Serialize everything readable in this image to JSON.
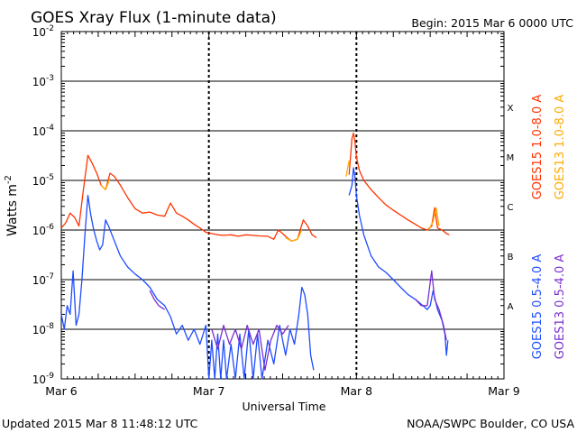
{
  "header": {
    "title": "GOES Xray Flux (1-minute data)",
    "begin": "Begin:  2015 Mar 6 0000 UTC"
  },
  "footer": {
    "updated": "Updated 2015 Mar  8 11:48:12 UTC",
    "credit": "NOAA/SWPC Boulder, CO USA"
  },
  "colors": {
    "goes15_long": "#ff3300",
    "goes13_long": "#ffaa00",
    "goes15_short": "#1f4cff",
    "goes13_short": "#7a2fd0",
    "gridline": "#000000"
  },
  "chart_data": {
    "type": "line",
    "title": "GOES Xray Flux (1-minute data)",
    "xlabel": "Universal Time",
    "ylabel": "Watts m-2",
    "y_scale": "log",
    "xlim": [
      0,
      3
    ],
    "ylim": [
      1e-09,
      0.01
    ],
    "x_unit": "days since 2015 Mar 6 0000 UTC",
    "x_ticks": [
      {
        "value": 0,
        "label": "Mar 6"
      },
      {
        "value": 1,
        "label": "Mar 7"
      },
      {
        "value": 2,
        "label": "Mar 8"
      },
      {
        "value": 3,
        "label": "Mar 9"
      }
    ],
    "y_ticks": [
      {
        "value": 1e-09,
        "base": "10",
        "exp": "-9"
      },
      {
        "value": 1e-08,
        "base": "10",
        "exp": "-8"
      },
      {
        "value": 1e-07,
        "base": "10",
        "exp": "-7"
      },
      {
        "value": 1e-06,
        "base": "10",
        "exp": "-6"
      },
      {
        "value": 1e-05,
        "base": "10",
        "exp": "-5"
      },
      {
        "value": 0.0001,
        "base": "10",
        "exp": "-4"
      },
      {
        "value": 0.001,
        "base": "10",
        "exp": "-3"
      },
      {
        "value": 0.01,
        "base": "10",
        "exp": "-2"
      }
    ],
    "flare_classes": [
      {
        "label": "A",
        "value": 3e-08
      },
      {
        "label": "B",
        "value": 3e-07
      },
      {
        "label": "C",
        "value": 3e-06
      },
      {
        "label": "M",
        "value": 3e-05
      },
      {
        "label": "X",
        "value": 0.0003
      }
    ],
    "legend_placement": "right",
    "grid": "horizontal at decades, dashed verticals at day boundaries",
    "series": [
      {
        "name": "GOES15 1.0-8.0 A",
        "color": "#ff3300",
        "segments": [
          [
            [
              0.0,
              1.1e-06
            ],
            [
              0.03,
              1.4e-06
            ],
            [
              0.06,
              2.2e-06
            ],
            [
              0.09,
              1.8e-06
            ],
            [
              0.12,
              1.2e-06
            ],
            [
              0.15,
              6.5e-06
            ],
            [
              0.18,
              3.2e-05
            ],
            [
              0.21,
              2.2e-05
            ],
            [
              0.24,
              1.4e-05
            ],
            [
              0.27,
              8e-06
            ],
            [
              0.3,
              6.5e-06
            ],
            [
              0.33,
              1.4e-05
            ],
            [
              0.36,
              1.2e-05
            ],
            [
              0.4,
              8e-06
            ],
            [
              0.45,
              4.5e-06
            ],
            [
              0.5,
              2.7e-06
            ],
            [
              0.55,
              2.2e-06
            ],
            [
              0.6,
              2.3e-06
            ],
            [
              0.65,
              2e-06
            ],
            [
              0.7,
              1.9e-06
            ],
            [
              0.74,
              3.5e-06
            ],
            [
              0.78,
              2.2e-06
            ],
            [
              0.82,
              1.9e-06
            ],
            [
              0.86,
              1.6e-06
            ],
            [
              0.9,
              1.3e-06
            ],
            [
              0.94,
              1.1e-06
            ],
            [
              0.98,
              9e-07
            ],
            [
              1.02,
              8.5e-07
            ],
            [
              1.06,
              8e-07
            ],
            [
              1.1,
              7.8e-07
            ],
            [
              1.15,
              8e-07
            ],
            [
              1.2,
              7.5e-07
            ],
            [
              1.25,
              8e-07
            ],
            [
              1.3,
              7.8e-07
            ],
            [
              1.35,
              7.6e-07
            ],
            [
              1.4,
              7.5e-07
            ],
            [
              1.44,
              6.5e-07
            ],
            [
              1.47,
              1e-06
            ],
            [
              1.5,
              8.5e-07
            ],
            [
              1.53,
              7e-07
            ],
            [
              1.56,
              6e-07
            ],
            [
              1.6,
              6.5e-07
            ],
            [
              1.64,
              1.6e-06
            ],
            [
              1.67,
              1.2e-06
            ],
            [
              1.7,
              8e-07
            ],
            [
              1.73,
              7e-07
            ]
          ],
          [
            [
              1.95,
              1.3e-05
            ],
            [
              1.96,
              3e-05
            ],
            [
              1.97,
              7e-05
            ],
            [
              1.98,
              9e-05
            ],
            [
              1.99,
              6e-05
            ],
            [
              2.0,
              3e-05
            ],
            [
              2.02,
              1.6e-05
            ],
            [
              2.05,
              1e-05
            ],
            [
              2.1,
              6.5e-06
            ],
            [
              2.15,
              4.5e-06
            ],
            [
              2.2,
              3.2e-06
            ],
            [
              2.25,
              2.5e-06
            ],
            [
              2.3,
              2e-06
            ],
            [
              2.35,
              1.6e-06
            ],
            [
              2.4,
              1.3e-06
            ],
            [
              2.44,
              1.1e-06
            ],
            [
              2.48,
              1e-06
            ],
            [
              2.51,
              1.2e-06
            ],
            [
              2.53,
              2.8e-06
            ],
            [
              2.55,
              1.1e-06
            ],
            [
              2.58,
              1e-06
            ],
            [
              2.61,
              8.5e-07
            ],
            [
              2.63,
              8e-07
            ]
          ]
        ]
      },
      {
        "name": "GOES13 1.0-8.0 A",
        "color": "#ffaa00",
        "segments": [
          [
            [
              0.27,
              8e-06
            ],
            [
              0.3,
              6.5e-06
            ],
            [
              0.33,
              1.1e-05
            ]
          ],
          [
            [
              1.52,
              7e-07
            ],
            [
              1.56,
              6e-07
            ],
            [
              1.6,
              6.5e-07
            ],
            [
              1.63,
              1e-06
            ]
          ],
          [
            [
              1.93,
              1.2e-05
            ],
            [
              1.95,
              2.5e-05
            ]
          ],
          [
            [
              2.49,
              1e-06
            ],
            [
              2.52,
              1.5e-06
            ],
            [
              2.54,
              2.8e-06
            ],
            [
              2.56,
              1.2e-06
            ]
          ]
        ]
      },
      {
        "name": "GOES15 0.5-4.0 A",
        "color": "#1f4cff",
        "segments": [
          [
            [
              0.0,
              2e-08
            ],
            [
              0.02,
              1e-08
            ],
            [
              0.04,
              3e-08
            ],
            [
              0.06,
              2e-08
            ],
            [
              0.08,
              1.5e-07
            ],
            [
              0.1,
              1.2e-08
            ],
            [
              0.12,
              2e-08
            ],
            [
              0.14,
              1e-07
            ],
            [
              0.16,
              8e-07
            ],
            [
              0.18,
              5e-06
            ],
            [
              0.2,
              2e-06
            ],
            [
              0.22,
              1e-06
            ],
            [
              0.24,
              6e-07
            ],
            [
              0.26,
              4e-07
            ],
            [
              0.28,
              5e-07
            ],
            [
              0.3,
              1.6e-06
            ],
            [
              0.32,
              1.2e-06
            ],
            [
              0.36,
              6e-07
            ],
            [
              0.4,
              3e-07
            ],
            [
              0.45,
              1.8e-07
            ],
            [
              0.5,
              1.3e-07
            ],
            [
              0.55,
              1e-07
            ],
            [
              0.6,
              7e-08
            ],
            [
              0.65,
              4e-08
            ],
            [
              0.7,
              3e-08
            ],
            [
              0.74,
              1.8e-08
            ],
            [
              0.78,
              8e-09
            ],
            [
              0.82,
              1.2e-08
            ],
            [
              0.86,
              6e-09
            ],
            [
              0.9,
              1e-08
            ],
            [
              0.94,
              5e-09
            ],
            [
              0.98,
              1.2e-08
            ],
            [
              1.0,
              1e-09
            ],
            [
              1.02,
              6e-09
            ],
            [
              1.04,
              1e-09
            ],
            [
              1.06,
              8e-09
            ],
            [
              1.08,
              1e-09
            ],
            [
              1.1,
              6e-09
            ],
            [
              1.12,
              1e-09
            ],
            [
              1.15,
              5e-09
            ],
            [
              1.18,
              1e-09
            ],
            [
              1.21,
              8e-09
            ],
            [
              1.24,
              1e-09
            ],
            [
              1.27,
              1e-08
            ],
            [
              1.3,
              1e-09
            ],
            [
              1.33,
              8e-09
            ],
            [
              1.36,
              1e-09
            ],
            [
              1.4,
              6e-09
            ],
            [
              1.44,
              2e-09
            ],
            [
              1.48,
              1.2e-08
            ],
            [
              1.52,
              3e-09
            ],
            [
              1.55,
              1e-08
            ],
            [
              1.58,
              5e-09
            ],
            [
              1.61,
              2e-08
            ],
            [
              1.63,
              7e-08
            ],
            [
              1.65,
              5e-08
            ],
            [
              1.67,
              2e-08
            ],
            [
              1.69,
              3e-09
            ],
            [
              1.71,
              1.5e-09
            ]
          ],
          [
            [
              1.95,
              5e-06
            ],
            [
              1.97,
              8e-06
            ],
            [
              1.98,
              1.8e-05
            ],
            [
              1.99,
              1.2e-05
            ],
            [
              2.0,
              5e-06
            ],
            [
              2.02,
              2e-06
            ],
            [
              2.05,
              8e-07
            ],
            [
              2.1,
              3e-07
            ],
            [
              2.15,
              1.8e-07
            ],
            [
              2.2,
              1.4e-07
            ],
            [
              2.25,
              1e-07
            ],
            [
              2.3,
              7e-08
            ],
            [
              2.35,
              5e-08
            ],
            [
              2.4,
              4e-08
            ],
            [
              2.45,
              3e-08
            ],
            [
              2.48,
              2.5e-08
            ],
            [
              2.5,
              3e-08
            ],
            [
              2.52,
              6e-08
            ],
            [
              2.55,
              2.5e-08
            ],
            [
              2.58,
              1.5e-08
            ],
            [
              2.6,
              8e-09
            ],
            [
              2.61,
              3e-09
            ],
            [
              2.62,
              6e-09
            ]
          ]
        ]
      },
      {
        "name": "GOES13 0.5-4.0 A",
        "color": "#7a2fd0",
        "segments": [
          [
            [
              0.6,
              6e-08
            ],
            [
              0.63,
              4e-08
            ],
            [
              0.66,
              3e-08
            ],
            [
              0.7,
              2.5e-08
            ]
          ],
          [
            [
              1.02,
              1e-08
            ],
            [
              1.06,
              4e-09
            ],
            [
              1.1,
              1.2e-08
            ],
            [
              1.14,
              5e-09
            ],
            [
              1.18,
              1e-08
            ],
            [
              1.22,
              4e-09
            ],
            [
              1.26,
              1.2e-08
            ],
            [
              1.3,
              5e-09
            ],
            [
              1.34,
              1e-08
            ],
            [
              1.38,
              1.5e-09
            ],
            [
              1.42,
              6e-09
            ],
            [
              1.46,
              1.2e-08
            ],
            [
              1.5,
              8e-09
            ],
            [
              1.54,
              1.2e-08
            ]
          ],
          [
            [
              2.4,
              4e-08
            ],
            [
              2.44,
              3e-08
            ],
            [
              2.48,
              3e-08
            ],
            [
              2.51,
              1.5e-07
            ],
            [
              2.53,
              4e-08
            ],
            [
              2.56,
              2.5e-08
            ],
            [
              2.59,
              1.2e-08
            ],
            [
              2.61,
              6e-09
            ]
          ]
        ]
      }
    ]
  }
}
